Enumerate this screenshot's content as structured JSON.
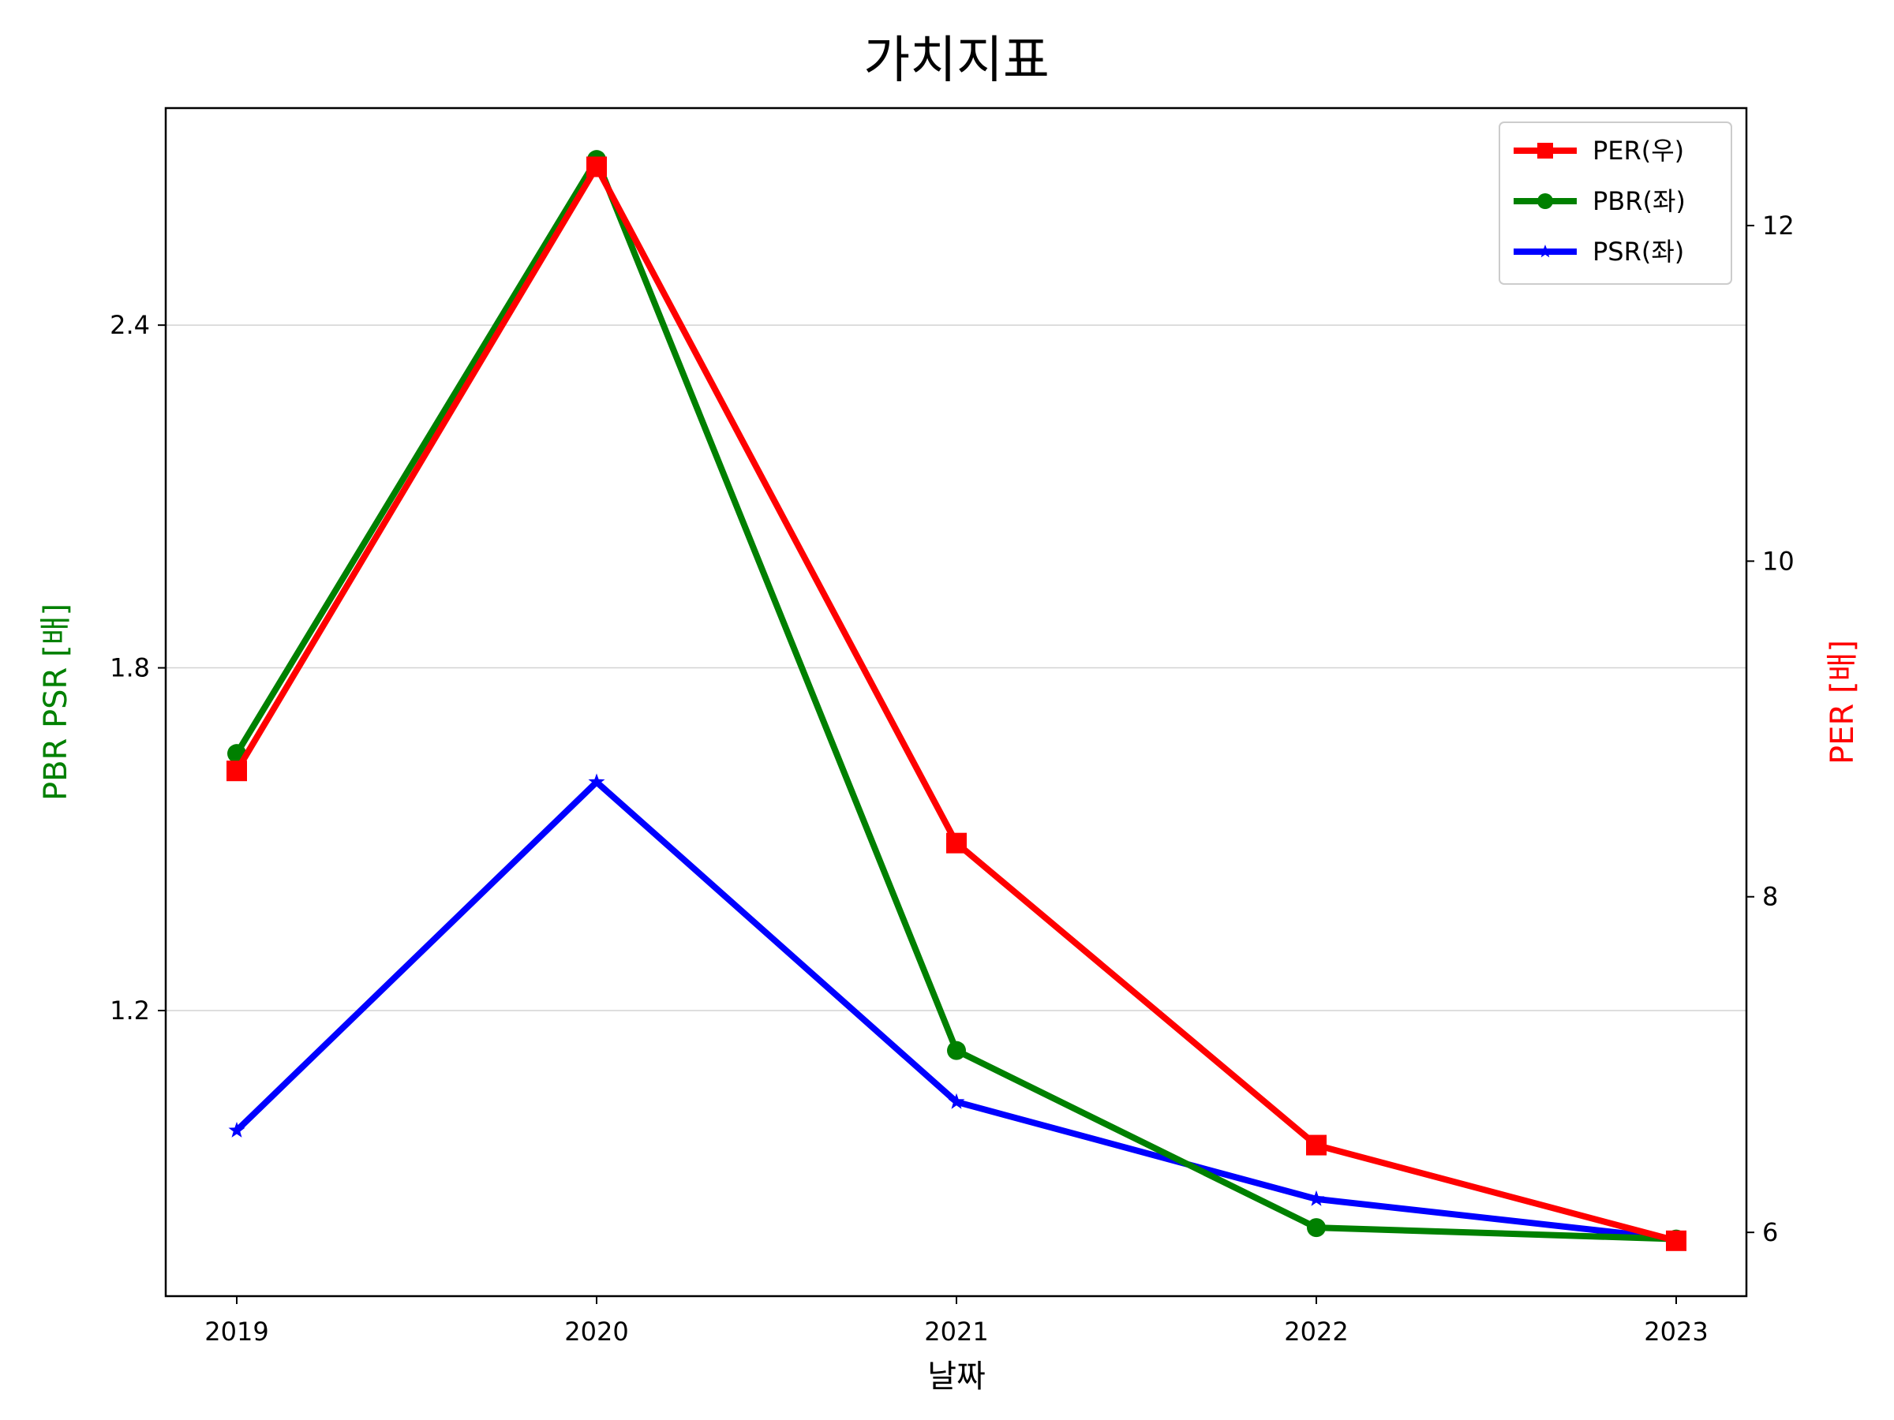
{
  "chart_data": {
    "type": "line",
    "title": "가치지표",
    "xlabel": "날짜",
    "ylabel_left": "PBR PSR [배]",
    "ylabel_right": "PER [배]",
    "colors": {
      "ylabel_left": "#008000",
      "ylabel_right": "#ff0000"
    },
    "categories": [
      "2019",
      "2020",
      "2021",
      "2022",
      "2023"
    ],
    "left_axis": {
      "ylim": [
        0.7,
        2.78
      ],
      "ticks": [
        1.2,
        1.8,
        2.4
      ],
      "tick_labels": [
        "1.2",
        "1.8",
        "2.4"
      ]
    },
    "right_axis": {
      "ylim": [
        5.62,
        12.7
      ],
      "ticks": [
        6,
        8,
        10,
        12
      ],
      "tick_labels": [
        "6",
        "8",
        "10",
        "12"
      ]
    },
    "grid": {
      "axis": "y-left",
      "on": true
    },
    "legend": {
      "position": "top-right"
    },
    "series": [
      {
        "name": "PER(우)",
        "axis": "right",
        "color": "#ff0000",
        "marker": "square",
        "values": [
          8.75,
          12.35,
          8.32,
          6.52,
          5.95
        ]
      },
      {
        "name": "PBR(좌)",
        "axis": "left",
        "color": "#008000",
        "marker": "circle",
        "values": [
          1.65,
          2.69,
          1.13,
          0.82,
          0.8
        ]
      },
      {
        "name": "PSR(좌)",
        "axis": "left",
        "color": "#0000ff",
        "marker": "star",
        "values": [
          0.99,
          1.6,
          1.04,
          0.87,
          0.8
        ]
      }
    ]
  }
}
